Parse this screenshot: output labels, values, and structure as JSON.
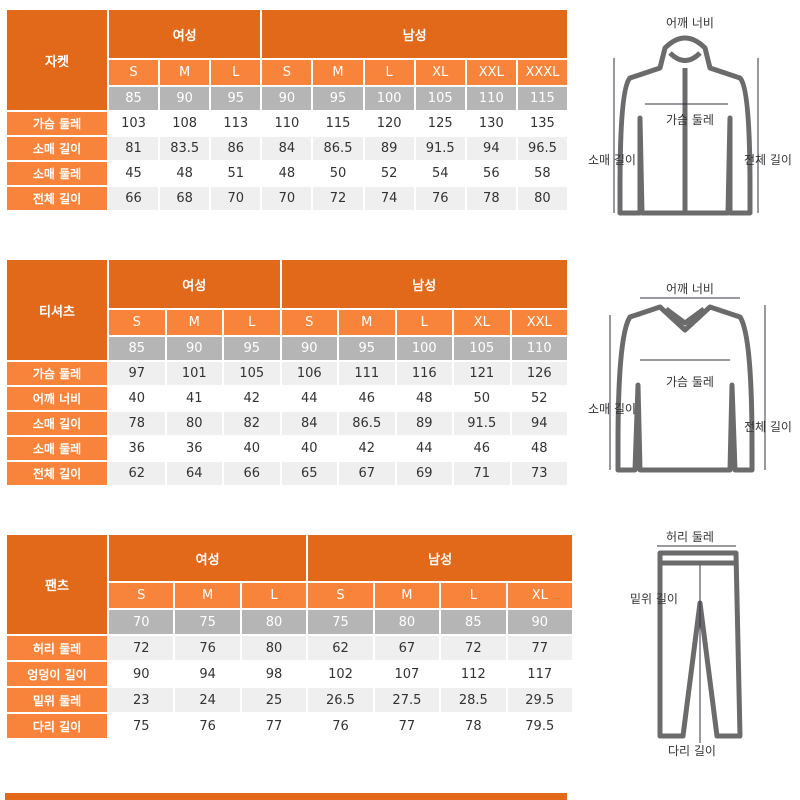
{
  "tables": [
    {
      "category": "자켓",
      "women_label": "여성",
      "men_label": "남성",
      "women_sizes": [
        "S",
        "M",
        "L"
      ],
      "men_sizes": [
        "S",
        "M",
        "L",
        "XL",
        "XXL",
        "XXXL"
      ],
      "size_numbers": [
        "85",
        "90",
        "95",
        "90",
        "95",
        "100",
        "105",
        "110",
        "115"
      ],
      "rows": [
        {
          "label": "가슴 둘레",
          "values": [
            "103",
            "108",
            "113",
            "110",
            "115",
            "120",
            "125",
            "130",
            "135"
          ]
        },
        {
          "label": "소매 길이",
          "values": [
            "81",
            "83.5",
            "86",
            "84",
            "86.5",
            "89",
            "91.5",
            "94",
            "96.5"
          ]
        },
        {
          "label": "소매 둘레",
          "values": [
            "45",
            "48",
            "51",
            "48",
            "50",
            "52",
            "54",
            "56",
            "58"
          ]
        },
        {
          "label": "전체 길이",
          "values": [
            "66",
            "68",
            "70",
            "70",
            "72",
            "74",
            "76",
            "78",
            "80"
          ]
        }
      ]
    },
    {
      "category": "티셔츠",
      "women_label": "여성",
      "men_label": "남성",
      "women_sizes": [
        "S",
        "M",
        "L"
      ],
      "men_sizes": [
        "S",
        "M",
        "L",
        "XL",
        "XXL"
      ],
      "size_numbers": [
        "85",
        "90",
        "95",
        "90",
        "95",
        "100",
        "105",
        "110"
      ],
      "rows": [
        {
          "label": "가슴 둘레",
          "values": [
            "97",
            "101",
            "105",
            "106",
            "111",
            "116",
            "121",
            "126"
          ]
        },
        {
          "label": "어깨 너비",
          "values": [
            "40",
            "41",
            "42",
            "44",
            "46",
            "48",
            "50",
            "52"
          ]
        },
        {
          "label": "소매 길이",
          "values": [
            "78",
            "80",
            "82",
            "84",
            "86.5",
            "89",
            "91.5",
            "94"
          ]
        },
        {
          "label": "소매 둘레",
          "values": [
            "36",
            "36",
            "40",
            "40",
            "42",
            "44",
            "46",
            "48"
          ]
        },
        {
          "label": "전체 길이",
          "values": [
            "62",
            "64",
            "66",
            "65",
            "67",
            "69",
            "71",
            "73"
          ]
        }
      ]
    },
    {
      "category": "팬츠",
      "women_label": "여성",
      "men_label": "남성",
      "women_sizes": [
        "S",
        "M",
        "L"
      ],
      "men_sizes": [
        "S",
        "M",
        "L",
        "XL"
      ],
      "size_numbers": [
        "70",
        "75",
        "80",
        "75",
        "80",
        "85",
        "90"
      ],
      "rows": [
        {
          "label": "허리 둘레",
          "values": [
            "72",
            "76",
            "80",
            "62",
            "67",
            "72",
            "77"
          ]
        },
        {
          "label": "엉덩이 길이",
          "values": [
            "90",
            "94",
            "98",
            "102",
            "107",
            "112",
            "117"
          ]
        },
        {
          "label": "밑위 둘레",
          "values": [
            "23",
            "24",
            "25",
            "26.5",
            "27.5",
            "28.5",
            "29.5"
          ]
        },
        {
          "label": "다리 길이",
          "values": [
            "75",
            "76",
            "77",
            "76",
            "77",
            "78",
            "79.5"
          ]
        }
      ]
    }
  ],
  "illustrations": {
    "jacket": {
      "top": "어깨 너비",
      "center": "가슴 둘레",
      "left": "소매 길이",
      "right": "전체 길이"
    },
    "tshirt": {
      "top": "어깨 너비",
      "center": "가슴 둘레",
      "left": "소매 길이",
      "right": "전체 길이"
    },
    "pants": {
      "top": "허리 둘레",
      "left": "밑위 길이",
      "bottom": "다리 길이"
    }
  },
  "colors": {
    "header": "#E2681A",
    "size": "#F7843A",
    "number": "#B5B5B5",
    "stripe": "#EFEFEF"
  }
}
